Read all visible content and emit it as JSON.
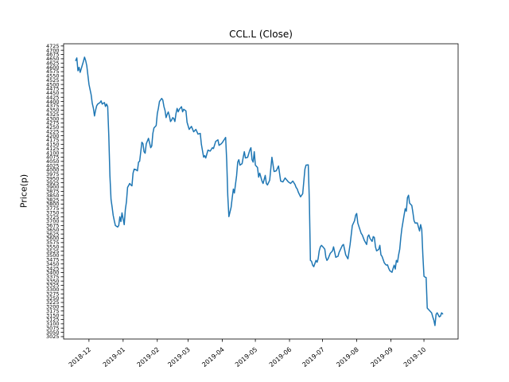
{
  "chart_data": {
    "type": "line",
    "title": "CCL.L (Close)",
    "xlabel": "",
    "ylabel": "Price(p)",
    "line_color": "#1f77b4",
    "axis_color": "#000000",
    "background_color": "#ffffff",
    "grid": false,
    "legend": null,
    "ylim": [
      3011,
      4738
    ],
    "xlim": [
      "2018-11-08",
      "2019-11-01"
    ],
    "y_tick_values": [
      3025,
      3050,
      3075,
      3100,
      3125,
      3150,
      3175,
      3200,
      3225,
      3250,
      3275,
      3300,
      3325,
      3350,
      3375,
      3400,
      3425,
      3450,
      3475,
      3500,
      3525,
      3550,
      3575,
      3600,
      3625,
      3650,
      3675,
      3700,
      3725,
      3750,
      3775,
      3800,
      3825,
      3850,
      3875,
      3900,
      3925,
      3950,
      3975,
      4000,
      4025,
      4050,
      4075,
      4100,
      4125,
      4150,
      4175,
      4200,
      4225,
      4250,
      4275,
      4300,
      4325,
      4350,
      4375,
      4400,
      4425,
      4450,
      4475,
      4500,
      4525,
      4550,
      4575,
      4600,
      4625,
      4650,
      4675,
      4700,
      4725
    ],
    "x_tick_labels": [
      "2018-12",
      "2019-01",
      "2019-02",
      "2019-03",
      "2019-04",
      "2019-05",
      "2019-06",
      "2019-07",
      "2019-08",
      "2019-09",
      "2019-10"
    ],
    "series": [
      {
        "name": "Close",
        "points": [
          [
            "2018-11-19",
            4640
          ],
          [
            "2018-11-20",
            4655
          ],
          [
            "2018-11-21",
            4580
          ],
          [
            "2018-11-22",
            4600
          ],
          [
            "2018-11-23",
            4571
          ],
          [
            "2018-11-26",
            4635
          ],
          [
            "2018-11-27",
            4660
          ],
          [
            "2018-11-28",
            4640
          ],
          [
            "2018-11-29",
            4610
          ],
          [
            "2018-11-30",
            4555
          ],
          [
            "2018-12-01",
            4500
          ],
          [
            "2018-12-03",
            4440
          ],
          [
            "2018-12-04",
            4390
          ],
          [
            "2018-12-05",
            4362
          ],
          [
            "2018-12-06",
            4316
          ],
          [
            "2018-12-07",
            4350
          ],
          [
            "2018-12-08",
            4376
          ],
          [
            "2018-12-09",
            4385
          ],
          [
            "2018-12-11",
            4394
          ],
          [
            "2018-12-12",
            4404
          ],
          [
            "2018-12-13",
            4385
          ],
          [
            "2018-12-15",
            4394
          ],
          [
            "2018-12-16",
            4371
          ],
          [
            "2018-12-17",
            4385
          ],
          [
            "2018-12-18",
            4371
          ],
          [
            "2018-12-19",
            4200
          ],
          [
            "2018-12-20",
            3967
          ],
          [
            "2018-12-21",
            3828
          ],
          [
            "2018-12-22",
            3782
          ],
          [
            "2018-12-23",
            3735
          ],
          [
            "2018-12-24",
            3703
          ],
          [
            "2018-12-25",
            3675
          ],
          [
            "2018-12-27",
            3666
          ],
          [
            "2018-12-28",
            3675
          ],
          [
            "2018-12-29",
            3726
          ],
          [
            "2018-12-30",
            3698
          ],
          [
            "2018-12-31",
            3749
          ],
          [
            "2019-01-02",
            3680
          ],
          [
            "2019-01-03",
            3768
          ],
          [
            "2019-01-04",
            3814
          ],
          [
            "2019-01-05",
            3898
          ],
          [
            "2019-01-07",
            3921
          ],
          [
            "2019-01-08",
            3912
          ],
          [
            "2019-01-09",
            3907
          ],
          [
            "2019-01-10",
            3981
          ],
          [
            "2019-01-11",
            4005
          ],
          [
            "2019-01-13",
            4000
          ],
          [
            "2019-01-14",
            3995
          ],
          [
            "2019-01-15",
            4046
          ],
          [
            "2019-01-16",
            4051
          ],
          [
            "2019-01-18",
            4162
          ],
          [
            "2019-01-19",
            4153
          ],
          [
            "2019-01-20",
            4107
          ],
          [
            "2019-01-21",
            4098
          ],
          [
            "2019-01-22",
            4153
          ],
          [
            "2019-01-24",
            4185
          ],
          [
            "2019-01-26",
            4130
          ],
          [
            "2019-01-27",
            4140
          ],
          [
            "2019-01-28",
            4214
          ],
          [
            "2019-01-29",
            4246
          ],
          [
            "2019-01-31",
            4260
          ],
          [
            "2019-02-01",
            4330
          ],
          [
            "2019-02-02",
            4362
          ],
          [
            "2019-02-03",
            4400
          ],
          [
            "2019-02-05",
            4418
          ],
          [
            "2019-02-06",
            4409
          ],
          [
            "2019-02-07",
            4371
          ],
          [
            "2019-02-08",
            4348
          ],
          [
            "2019-02-09",
            4306
          ],
          [
            "2019-02-10",
            4325
          ],
          [
            "2019-02-11",
            4339
          ],
          [
            "2019-02-12",
            4316
          ],
          [
            "2019-02-13",
            4283
          ],
          [
            "2019-02-14",
            4292
          ],
          [
            "2019-02-15",
            4306
          ],
          [
            "2019-02-16",
            4301
          ],
          [
            "2019-02-17",
            4283
          ],
          [
            "2019-02-18",
            4330
          ],
          [
            "2019-02-19",
            4360
          ],
          [
            "2019-02-20",
            4340
          ],
          [
            "2019-02-21",
            4355
          ],
          [
            "2019-02-23",
            4370
          ],
          [
            "2019-02-24",
            4340
          ],
          [
            "2019-02-25",
            4355
          ],
          [
            "2019-02-27",
            4345
          ],
          [
            "2019-02-28",
            4279
          ],
          [
            "2019-03-02",
            4237
          ],
          [
            "2019-03-04",
            4255
          ],
          [
            "2019-03-06",
            4223
          ],
          [
            "2019-03-08",
            4237
          ],
          [
            "2019-03-10",
            4209
          ],
          [
            "2019-03-12",
            4214
          ],
          [
            "2019-03-13",
            4150
          ],
          [
            "2019-03-15",
            4075
          ],
          [
            "2019-03-16",
            4084
          ],
          [
            "2019-03-17",
            4070
          ],
          [
            "2019-03-19",
            4116
          ],
          [
            "2019-03-21",
            4110
          ],
          [
            "2019-03-23",
            4130
          ],
          [
            "2019-03-24",
            4125
          ],
          [
            "2019-03-26",
            4167
          ],
          [
            "2019-03-28",
            4176
          ],
          [
            "2019-03-29",
            4144
          ],
          [
            "2019-03-31",
            4153
          ],
          [
            "2019-04-01",
            4160
          ],
          [
            "2019-04-03",
            4180
          ],
          [
            "2019-04-04",
            4190
          ],
          [
            "2019-04-05",
            4050
          ],
          [
            "2019-04-06",
            3850
          ],
          [
            "2019-04-07",
            3727
          ],
          [
            "2019-04-09",
            3782
          ],
          [
            "2019-04-10",
            3838
          ],
          [
            "2019-04-11",
            3888
          ],
          [
            "2019-04-12",
            3865
          ],
          [
            "2019-04-14",
            3967
          ],
          [
            "2019-04-15",
            4046
          ],
          [
            "2019-04-16",
            4060
          ],
          [
            "2019-04-17",
            4028
          ],
          [
            "2019-04-19",
            4037
          ],
          [
            "2019-04-20",
            4074
          ],
          [
            "2019-04-21",
            4107
          ],
          [
            "2019-04-22",
            4070
          ],
          [
            "2019-04-24",
            4074
          ],
          [
            "2019-04-26",
            4116
          ],
          [
            "2019-04-27",
            4130
          ],
          [
            "2019-04-28",
            4060
          ],
          [
            "2019-04-29",
            4046
          ],
          [
            "2019-04-30",
            4107
          ],
          [
            "2019-05-01",
            4028
          ],
          [
            "2019-05-03",
            4014
          ],
          [
            "2019-05-04",
            3958
          ],
          [
            "2019-05-05",
            3981
          ],
          [
            "2019-05-07",
            3935
          ],
          [
            "2019-05-08",
            3921
          ],
          [
            "2019-05-10",
            3968
          ],
          [
            "2019-05-11",
            3921
          ],
          [
            "2019-05-12",
            3912
          ],
          [
            "2019-05-14",
            3940
          ],
          [
            "2019-05-16",
            4074
          ],
          [
            "2019-05-18",
            3991
          ],
          [
            "2019-05-20",
            3995
          ],
          [
            "2019-05-22",
            4023
          ],
          [
            "2019-05-24",
            3935
          ],
          [
            "2019-05-26",
            3930
          ],
          [
            "2019-05-28",
            3953
          ],
          [
            "2019-05-29",
            3945
          ],
          [
            "2019-05-31",
            3930
          ],
          [
            "2019-06-02",
            3921
          ],
          [
            "2019-06-04",
            3935
          ],
          [
            "2019-06-06",
            3915
          ],
          [
            "2019-06-07",
            3898
          ],
          [
            "2019-06-08",
            3889
          ],
          [
            "2019-06-09",
            3870
          ],
          [
            "2019-06-11",
            3843
          ],
          [
            "2019-06-13",
            3861
          ],
          [
            "2019-06-15",
            4005
          ],
          [
            "2019-06-16",
            4028
          ],
          [
            "2019-06-18",
            4030
          ],
          [
            "2019-06-19",
            3814
          ],
          [
            "2019-06-20",
            3471
          ],
          [
            "2019-06-21",
            3466
          ],
          [
            "2019-06-22",
            3443
          ],
          [
            "2019-06-23",
            3434
          ],
          [
            "2019-06-25",
            3471
          ],
          [
            "2019-06-26",
            3460
          ],
          [
            "2019-06-27",
            3480
          ],
          [
            "2019-06-28",
            3527
          ],
          [
            "2019-06-29",
            3550
          ],
          [
            "2019-06-30",
            3559
          ],
          [
            "2019-07-02",
            3545
          ],
          [
            "2019-07-03",
            3536
          ],
          [
            "2019-07-04",
            3490
          ],
          [
            "2019-07-05",
            3471
          ],
          [
            "2019-07-06",
            3480
          ],
          [
            "2019-07-08",
            3513
          ],
          [
            "2019-07-10",
            3527
          ],
          [
            "2019-07-11",
            3550
          ],
          [
            "2019-07-13",
            3489
          ],
          [
            "2019-07-15",
            3495
          ],
          [
            "2019-07-16",
            3518
          ],
          [
            "2019-07-19",
            3559
          ],
          [
            "2019-07-20",
            3564
          ],
          [
            "2019-07-22",
            3503
          ],
          [
            "2019-07-24",
            3480
          ],
          [
            "2019-07-26",
            3564
          ],
          [
            "2019-07-28",
            3675
          ],
          [
            "2019-07-30",
            3703
          ],
          [
            "2019-07-31",
            3736
          ],
          [
            "2019-08-01",
            3745
          ],
          [
            "2019-08-02",
            3689
          ],
          [
            "2019-08-05",
            3629
          ],
          [
            "2019-08-06",
            3620
          ],
          [
            "2019-08-08",
            3587
          ],
          [
            "2019-08-10",
            3564
          ],
          [
            "2019-08-11",
            3610
          ],
          [
            "2019-08-12",
            3620
          ],
          [
            "2019-08-13",
            3600
          ],
          [
            "2019-08-15",
            3582
          ],
          [
            "2019-08-16",
            3610
          ],
          [
            "2019-08-17",
            3605
          ],
          [
            "2019-08-18",
            3550
          ],
          [
            "2019-08-19",
            3527
          ],
          [
            "2019-08-21",
            3535
          ],
          [
            "2019-08-22",
            3559
          ],
          [
            "2019-08-23",
            3503
          ],
          [
            "2019-08-24",
            3494
          ],
          [
            "2019-08-26",
            3457
          ],
          [
            "2019-08-27",
            3448
          ],
          [
            "2019-08-28",
            3443
          ],
          [
            "2019-08-29",
            3445
          ],
          [
            "2019-08-30",
            3425
          ],
          [
            "2019-08-31",
            3411
          ],
          [
            "2019-09-02",
            3401
          ],
          [
            "2019-09-03",
            3425
          ],
          [
            "2019-09-04",
            3443
          ],
          [
            "2019-09-05",
            3420
          ],
          [
            "2019-09-06",
            3471
          ],
          [
            "2019-09-07",
            3460
          ],
          [
            "2019-09-08",
            3503
          ],
          [
            "2019-09-09",
            3536
          ],
          [
            "2019-09-10",
            3606
          ],
          [
            "2019-09-11",
            3657
          ],
          [
            "2019-09-13",
            3736
          ],
          [
            "2019-09-14",
            3773
          ],
          [
            "2019-09-15",
            3759
          ],
          [
            "2019-09-16",
            3838
          ],
          [
            "2019-09-17",
            3852
          ],
          [
            "2019-09-18",
            3806
          ],
          [
            "2019-09-20",
            3792
          ],
          [
            "2019-09-21",
            3750
          ],
          [
            "2019-09-22",
            3703
          ],
          [
            "2019-09-23",
            3689
          ],
          [
            "2019-09-25",
            3690
          ],
          [
            "2019-09-27",
            3643
          ],
          [
            "2019-09-28",
            3680
          ],
          [
            "2019-09-29",
            3652
          ],
          [
            "2019-09-30",
            3500
          ],
          [
            "2019-10-01",
            3378
          ],
          [
            "2019-10-02",
            3373
          ],
          [
            "2019-10-03",
            3371
          ],
          [
            "2019-10-04",
            3192
          ],
          [
            "2019-10-06",
            3178
          ],
          [
            "2019-10-08",
            3164
          ],
          [
            "2019-10-09",
            3141
          ],
          [
            "2019-10-10",
            3122
          ],
          [
            "2019-10-11",
            3090
          ],
          [
            "2019-10-12",
            3155
          ],
          [
            "2019-10-13",
            3164
          ],
          [
            "2019-10-15",
            3141
          ],
          [
            "2019-10-16",
            3145
          ],
          [
            "2019-10-17",
            3164
          ],
          [
            "2019-10-18",
            3158
          ]
        ]
      }
    ]
  }
}
